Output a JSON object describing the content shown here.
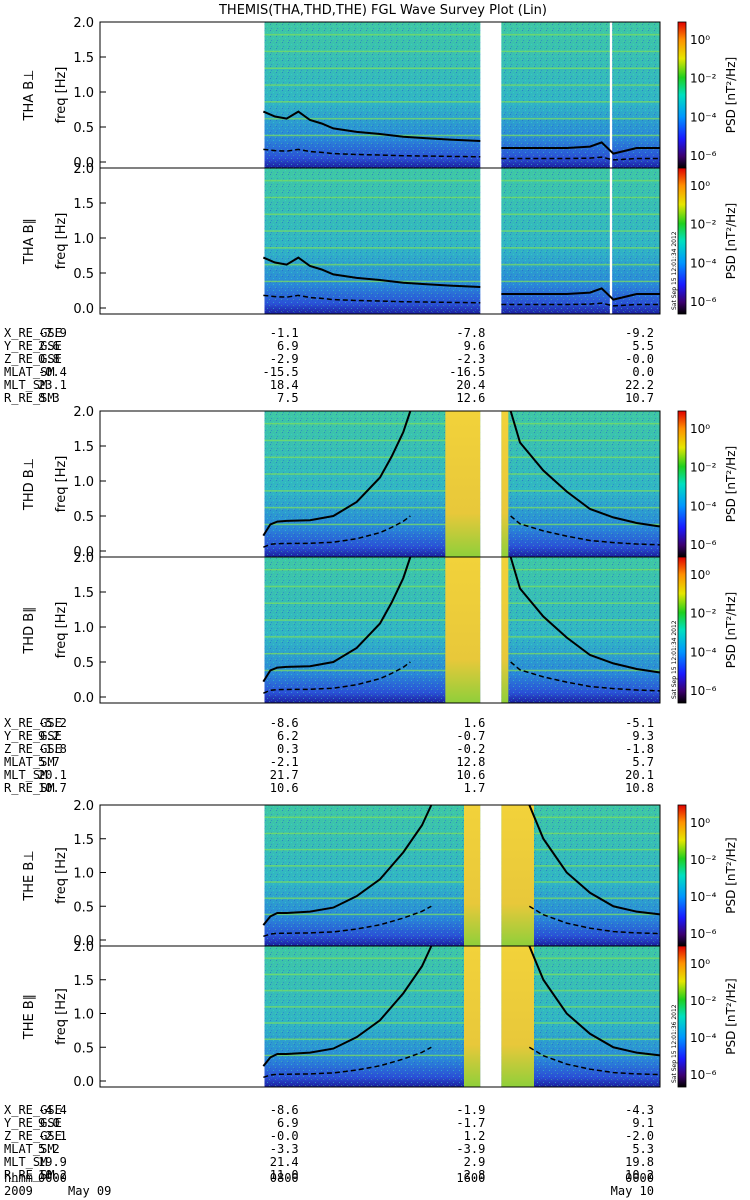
{
  "title": "THEMIS(THA,THD,THE) FGL Wave Survey Plot (Lin)",
  "chart_data": {
    "type": "heatmap",
    "x_tick_labels": [
      "0000",
      "0800",
      "1600",
      "0000"
    ],
    "time_row_label": "hhmm",
    "date_row": {
      "year": "2009",
      "start": "May 09",
      "end": "May 10"
    },
    "freq_range_hz": [
      0.0,
      2.0
    ],
    "freq_ticks": [
      "0.0",
      "0.5",
      "1.0",
      "1.5",
      "2.0"
    ],
    "freq_axis_label": "freq [Hz]",
    "colorbar": {
      "label": "PSD [nT²/Hz]",
      "scale": "log",
      "ticks": [
        "10⁰",
        "10⁻²",
        "10⁻⁴",
        "10⁻⁶"
      ]
    },
    "timestamp": "Sat Sep 15 12:01:34 2012",
    "timestamp_e": "Sat Sep 15 12:01:36 2012",
    "probes": [
      {
        "id": "THA",
        "panels": [
          {
            "label": "THA B⊥",
            "comp": "perp"
          },
          {
            "label": "THA B∥",
            "comp": "par"
          }
        ],
        "data_gaps_hours": [
          [
            0,
            7.05
          ],
          [
            16.3,
            17.2
          ]
        ],
        "narrow_gaps_hours": [
          [
            21.85,
            21.95
          ]
        ],
        "ephemeris": {
          "rows": [
            "X_RE_GSE",
            "Y_RE_GSE",
            "Z_RE_GSE",
            "MLAT_SM",
            "MLT_SM",
            "R_RE_SM"
          ],
          "values": [
            [
              "-7.9",
              "2.6",
              "0.8",
              "-0.4",
              "23.1",
              "8.3"
            ],
            [
              "-1.1",
              "6.9",
              "-2.9",
              "-15.5",
              "18.4",
              "7.5"
            ],
            [
              "-7.8",
              "9.6",
              "-2.3",
              "-16.5",
              "20.4",
              "12.6"
            ],
            [
              "-9.2",
              "5.5",
              "-0.0",
              "0.0",
              "22.2",
              "10.7"
            ]
          ]
        },
        "gyro_line_hz": {
          "x_hours": [
            7.0,
            7.5,
            8.0,
            8.5,
            9.0,
            9.5,
            10,
            11,
            12,
            13,
            14,
            15,
            16.3,
            17.2,
            18,
            19,
            20,
            21,
            21.5,
            22,
            23,
            24
          ],
          "f": [
            0.72,
            0.65,
            0.62,
            0.72,
            0.6,
            0.55,
            0.48,
            0.43,
            0.4,
            0.36,
            0.34,
            0.32,
            0.3,
            0.2,
            0.2,
            0.2,
            0.2,
            0.22,
            0.28,
            0.12,
            0.2,
            0.2
          ]
        }
      },
      {
        "id": "THD",
        "panels": [
          {
            "label": "THD B⊥",
            "comp": "perp"
          },
          {
            "label": "THD B∥",
            "comp": "par"
          }
        ],
        "data_gaps_hours": [
          [
            0,
            7.05
          ],
          [
            16.3,
            17.2
          ]
        ],
        "narrow_gaps_hours": [],
        "ephemeris": {
          "rows": [
            "X_RE_GSE",
            "Y_RE_GSE",
            "Z_RE_GSE",
            "MLAT_SM",
            "MLT_SM",
            "R_RE_SM"
          ],
          "values": [
            [
              "-5.2",
              "9.2",
              "-1.8",
              "5.7",
              "20.1",
              "10.7"
            ],
            [
              "-8.6",
              "6.2",
              "0.3",
              "-2.1",
              "21.7",
              "10.6"
            ],
            [
              "1.6",
              "-0.7",
              "-0.2",
              "12.8",
              "10.6",
              "1.7"
            ],
            [
              "-5.1",
              "9.3",
              "-1.8",
              "5.7",
              "20.1",
              "10.8"
            ]
          ]
        },
        "gyro_line_hz": {
          "x_hours": [
            7.0,
            7.3,
            7.6,
            8,
            9,
            10,
            11,
            12,
            12.5,
            13,
            13.3,
            17.6,
            18,
            19,
            20,
            21,
            22,
            23,
            24
          ],
          "f": [
            0.22,
            0.38,
            0.42,
            0.43,
            0.44,
            0.5,
            0.7,
            1.05,
            1.35,
            1.7,
            2.0,
            2.0,
            1.55,
            1.15,
            0.85,
            0.6,
            0.48,
            0.4,
            0.35
          ]
        },
        "warm_bands_hours": [
          [
            14.8,
            16.3
          ],
          [
            17.2,
            17.5
          ]
        ]
      },
      {
        "id": "THE",
        "panels": [
          {
            "label": "THE B⊥",
            "comp": "perp"
          },
          {
            "label": "THE B∥",
            "comp": "par"
          }
        ],
        "data_gaps_hours": [
          [
            0,
            7.05
          ],
          [
            16.3,
            17.2
          ]
        ],
        "narrow_gaps_hours": [],
        "ephemeris": {
          "rows": [
            "X_RE_GSE",
            "Y_RE_GSE",
            "Z_RE_GSE",
            "MLAT_SM",
            "MLT_SM",
            "R_RE_SM"
          ],
          "values": [
            [
              "-4.4",
              "9.0",
              "-2.1",
              "5.2",
              "19.9",
              "10.2"
            ],
            [
              "-8.6",
              "6.9",
              "-0.0",
              "-3.3",
              "21.4",
              "11.0"
            ],
            [
              "-1.9",
              "-1.7",
              "1.2",
              "-3.9",
              "2.9",
              "2.8"
            ],
            [
              "-4.3",
              "9.1",
              "-2.0",
              "5.3",
              "19.8",
              "10.2"
            ]
          ]
        },
        "gyro_line_hz": {
          "x_hours": [
            7.0,
            7.3,
            7.6,
            8,
            9,
            10,
            11,
            12,
            13,
            13.8,
            14.2,
            18.4,
            19,
            20,
            21,
            22,
            23,
            24
          ],
          "f": [
            0.22,
            0.35,
            0.4,
            0.4,
            0.42,
            0.48,
            0.65,
            0.9,
            1.3,
            1.7,
            2.0,
            2.0,
            1.5,
            1.0,
            0.7,
            0.5,
            0.42,
            0.38
          ]
        },
        "warm_bands_hours": [
          [
            15.6,
            16.3
          ],
          [
            17.2,
            18.6
          ]
        ]
      }
    ]
  }
}
